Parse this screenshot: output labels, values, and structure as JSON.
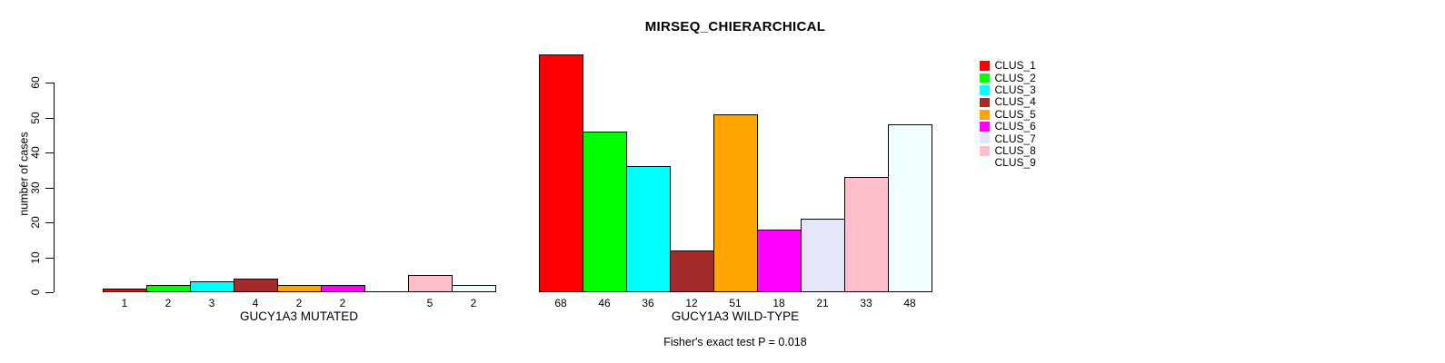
{
  "chart_data": {
    "type": "bar",
    "title": "MIRSEQ_CHIERARCHICAL",
    "ylabel": "number of cases",
    "ylim": [
      0,
      60
    ],
    "yticks": [
      0,
      10,
      20,
      30,
      40,
      50,
      60
    ],
    "grid": false,
    "legend_position": "top-right",
    "clusters": [
      {
        "label": "CLUS_1",
        "color": "#FF0000"
      },
      {
        "label": "CLUS_2",
        "color": "#00FF00"
      },
      {
        "label": "CLUS_3",
        "color": "#00FFFF"
      },
      {
        "label": "CLUS_4",
        "color": "#A52A2A"
      },
      {
        "label": "CLUS_5",
        "color": "#FFA500"
      },
      {
        "label": "CLUS_6",
        "color": "#FF00FF"
      },
      {
        "label": "CLUS_7",
        "color": "#E6E6FA"
      },
      {
        "label": "CLUS_8",
        "color": "#FFC0CB"
      },
      {
        "label": "CLUS_9",
        "color": "#F0FFFF"
      }
    ],
    "groups": [
      {
        "xlabel": "GUCY1A3 MUTATED",
        "values": [
          1,
          2,
          3,
          4,
          2,
          2,
          0,
          5,
          2
        ]
      },
      {
        "xlabel": "GUCY1A3 WILD-TYPE",
        "values": [
          68,
          46,
          36,
          12,
          51,
          18,
          21,
          33,
          48
        ]
      }
    ],
    "annotation": "Fisher's exact test P = 0.018"
  }
}
